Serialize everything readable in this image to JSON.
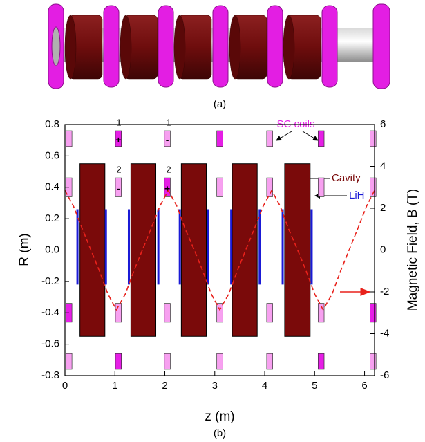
{
  "chart_data": {
    "type": "line",
    "panel_labels": [
      "(a)",
      "(b)"
    ],
    "xlabel": "z (m)",
    "ylabel": "R (m)",
    "y2label": "Magnetic Field, B (T)",
    "xlim": [
      0,
      6.2
    ],
    "xticks": [
      0,
      1,
      2,
      3,
      4,
      5,
      6
    ],
    "ylim": [
      -0.8,
      0.8
    ],
    "yticks": [
      -0.8,
      -0.6,
      -0.4,
      -0.2,
      {
        "value": 0,
        "label": "0.0"
      },
      0.2,
      0.4,
      0.6,
      0.8
    ],
    "y2lim": [
      -6,
      6
    ],
    "y2ticks": [
      -6,
      -4,
      -2,
      0,
      2,
      4,
      6
    ],
    "series": [
      {
        "color": "#e8211b",
        "axis": "y2",
        "dashed": true,
        "x": [
          0,
          0.17,
          0.35,
          0.52,
          0.69,
          0.86,
          1.03,
          1.21,
          1.38,
          1.55,
          1.72,
          1.9,
          2.07,
          2.24,
          2.41,
          2.59,
          2.76,
          2.93,
          3.1,
          3.28,
          3.45,
          3.62,
          3.79,
          3.97,
          4.14,
          4.31,
          4.48,
          4.66,
          4.83,
          5.0,
          5.17,
          5.35,
          5.52,
          5.69,
          5.86,
          6.04,
          6.2
        ],
        "values": [
          2.85,
          2.1,
          1.0,
          0,
          -1.0,
          -2.1,
          -2.85,
          -2.1,
          -1.0,
          0,
          1.0,
          2.1,
          2.85,
          2.1,
          1.0,
          0,
          -1.0,
          -2.1,
          -2.85,
          -2.1,
          -1.0,
          0,
          1.0,
          2.1,
          2.85,
          2.1,
          1.0,
          0,
          -1.0,
          -2.1,
          -2.85,
          -2.1,
          -1.0,
          0,
          1.0,
          2.1,
          2.85
        ]
      }
    ],
    "cavities": {
      "color": "#7a0a0a",
      "r": [
        -0.55,
        0.55
      ],
      "z": [
        [
          0.3,
          0.8
        ],
        [
          1.32,
          1.82
        ],
        [
          2.33,
          2.83
        ],
        [
          3.35,
          3.85
        ],
        [
          4.4,
          4.91
        ]
      ]
    },
    "lih": {
      "color": "#1a1ad6",
      "r": [
        -0.22,
        0.26
      ],
      "z": [
        0.25,
        0.82,
        1.28,
        1.87,
        2.3,
        2.87,
        3.33,
        3.9,
        4.36,
        4.94
      ]
    },
    "coils": {
      "width": 0.12,
      "z": [
        0.08,
        1.07,
        2.05,
        3.1,
        4.1,
        5.13,
        6.17
      ],
      "palette": {
        "m": "#e61ee6",
        "l": "#f7a0f0"
      },
      "rows": [
        {
          "r": [
            0.66,
            0.76
          ],
          "colors": [
            "l",
            "m",
            "l",
            "m",
            "l",
            "m",
            "l"
          ]
        },
        {
          "r": [
            0.34,
            0.46
          ],
          "colors": [
            "l",
            "l",
            "m",
            "l",
            "l",
            "l",
            "l"
          ]
        },
        {
          "r": [
            -0.46,
            -0.34
          ],
          "colors": [
            "m",
            "l",
            "l",
            "l",
            "l",
            "l",
            "m"
          ]
        },
        {
          "r": [
            -0.76,
            -0.66
          ],
          "colors": [
            "l",
            "m",
            "l",
            "l",
            "l",
            "m",
            "l"
          ]
        }
      ]
    },
    "annotations": {
      "coil_numbers": [
        "1",
        "1",
        "2",
        "2"
      ],
      "polarity": [
        "+",
        "-",
        "-",
        "+"
      ],
      "sc_coils": "SC coils",
      "cavity": "Cavity",
      "lih": "LiH"
    }
  }
}
